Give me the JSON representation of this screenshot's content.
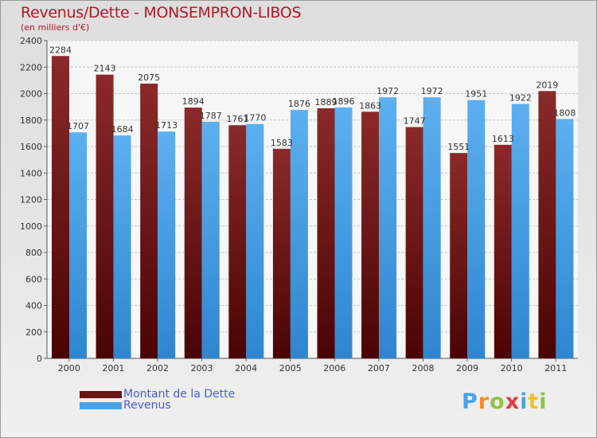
{
  "header": {
    "title": "Revenus/Dette - MONSEMPRON-LIBOS",
    "subtitle": "(en milliers d'€)"
  },
  "legend": [
    {
      "label": "Montant de la Dette",
      "color": "#6b1414"
    },
    {
      "label": "Revenus",
      "color": "#4aa3e8"
    }
  ],
  "logo": {
    "text": "Proxiti",
    "letters": [
      {
        "ch": "P",
        "color": "#4aa3e8"
      },
      {
        "ch": "r",
        "color": "#f28c28"
      },
      {
        "ch": "o",
        "color": "#8dc63f"
      },
      {
        "ch": "x",
        "color": "#e23d3d"
      },
      {
        "ch": "i",
        "color": "#4aa3e8"
      },
      {
        "ch": "t",
        "color": "#f2c12e"
      },
      {
        "ch": "i",
        "color": "#8dc63f"
      }
    ]
  },
  "chart_data": {
    "type": "bar",
    "categories": [
      "2000",
      "2001",
      "2002",
      "2003",
      "2004",
      "2005",
      "2006",
      "2007",
      "2008",
      "2009",
      "2010",
      "2011"
    ],
    "series": [
      {
        "name": "Montant de la Dette",
        "color": "#6b1414",
        "values": [
          2284,
          2143,
          2075,
          1894,
          1761,
          1583,
          1889,
          1863,
          1747,
          1551,
          1613,
          2019
        ]
      },
      {
        "name": "Revenus",
        "color": "#4aa3e8",
        "values": [
          1707,
          1684,
          1713,
          1787,
          1770,
          1876,
          1896,
          1972,
          1972,
          1951,
          1922,
          1808
        ]
      }
    ],
    "title": "Revenus/Dette - MONSEMPRON-LIBOS",
    "subtitle": "(en milliers d'€)",
    "xlabel": "",
    "ylabel": "",
    "ylim": [
      0,
      2400
    ],
    "yticks": [
      0,
      200,
      400,
      600,
      800,
      1000,
      1200,
      1400,
      1600,
      1800,
      2000,
      2200,
      2400
    ],
    "grid": true,
    "legend_position": "bottom-left"
  }
}
